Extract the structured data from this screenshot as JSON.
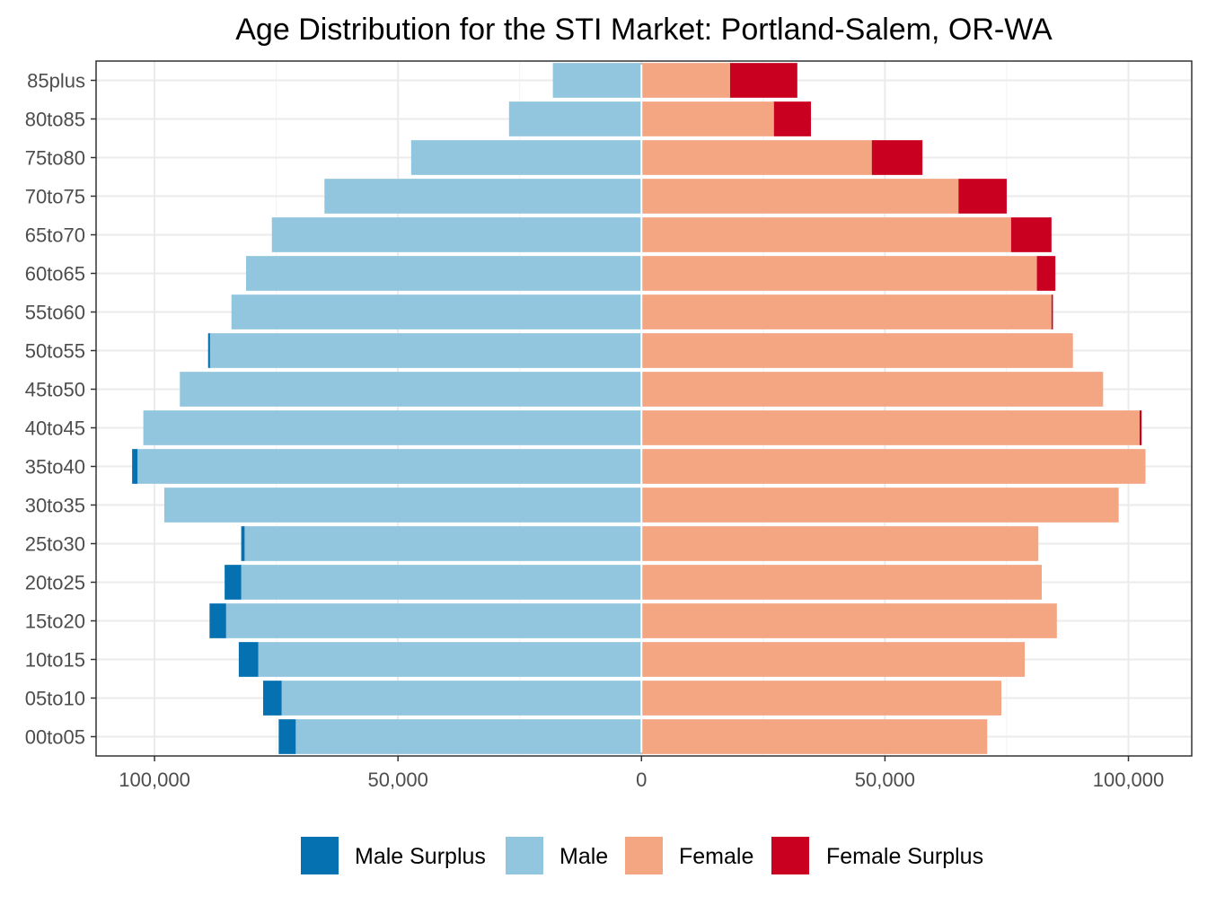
{
  "chart_data": {
    "type": "bar",
    "orientation": "horizontal",
    "title": "Age Distribution for the STI Market: Portland-Salem, OR-WA",
    "xlabel": "",
    "ylabel": "",
    "categories": [
      "00to05",
      "05to10",
      "10to15",
      "15to20",
      "20to25",
      "25to30",
      "30to35",
      "35to40",
      "40to45",
      "45to50",
      "50to55",
      "55to60",
      "60to65",
      "65to70",
      "70to75",
      "75to80",
      "80to85",
      "85plus"
    ],
    "xlim": [
      -112000,
      113000
    ],
    "x_ticks": [
      -100000,
      -50000,
      0,
      50000,
      100000
    ],
    "x_tick_labels": [
      "100,000",
      "50,000",
      "0",
      "50,000",
      "100,000"
    ],
    "grid": true,
    "legend_position": "bottom",
    "series": [
      {
        "name": "Male Surplus",
        "color": "#0571b0",
        "side": "left",
        "values": [
          3500,
          3800,
          4000,
          3400,
          3400,
          700,
          0,
          1100,
          0,
          0,
          400,
          0,
          0,
          0,
          0,
          0,
          0,
          0
        ]
      },
      {
        "name": "Male",
        "color": "#92c5de",
        "side": "left",
        "values": [
          71000,
          73900,
          78700,
          85300,
          82200,
          81500,
          98000,
          103500,
          102300,
          94800,
          88600,
          84200,
          81200,
          75900,
          65100,
          47300,
          27200,
          18200
        ]
      },
      {
        "name": "Female",
        "color": "#f4a582",
        "side": "right",
        "values": [
          71000,
          73900,
          78700,
          85300,
          82200,
          81500,
          98000,
          103500,
          102300,
          94800,
          88600,
          84200,
          81200,
          75900,
          65100,
          47300,
          27200,
          18200
        ]
      },
      {
        "name": "Female Surplus",
        "color": "#ca0020",
        "side": "right",
        "values": [
          0,
          0,
          0,
          0,
          0,
          0,
          0,
          0,
          400,
          0,
          0,
          300,
          3800,
          8300,
          9900,
          10400,
          7600,
          13800
        ]
      }
    ]
  }
}
